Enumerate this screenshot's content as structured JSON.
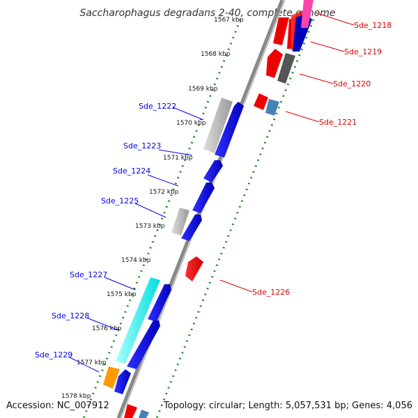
{
  "title": "Saccharophagus degradans 2-40, complete genome",
  "footer": {
    "accession": "Accession: NC_007912",
    "topology": "Topology: circular; Length: 5,057,531 bp; Genes: 4,056"
  },
  "ticks": [
    "1567 kbp",
    "1568 kbp",
    "1569 kbp",
    "1570 kbp",
    "1571 kbp",
    "1572 kbp",
    "1573 kbp",
    "1574 kbp",
    "1575 kbp",
    "1576 kbp",
    "1577 kbp",
    "1578 kbp"
  ],
  "genes_forward": [
    {
      "name": "Sde_1222",
      "color": "#0000ee"
    },
    {
      "name": "Sde_1223",
      "color": "#0000ee"
    },
    {
      "name": "Sde_1224",
      "color": "#0000ee"
    },
    {
      "name": "Sde_1225",
      "color": "#0000ee"
    },
    {
      "name": "Sde_1227",
      "color": "#0000ee"
    },
    {
      "name": "Sde_1228",
      "color": "#0000ee"
    },
    {
      "name": "Sde_1229",
      "color": "#0000ee"
    }
  ],
  "genes_reverse": [
    {
      "name": "Sde_1218",
      "color": "#dd0000"
    },
    {
      "name": "Sde_1219",
      "color": "#dd0000"
    },
    {
      "name": "Sde_1220",
      "color": "#dd0000"
    },
    {
      "name": "Sde_1221",
      "color": "#dd0000"
    },
    {
      "name": "Sde_1226",
      "color": "#dd0000"
    }
  ],
  "colors": {
    "forward": "#0000ee",
    "reverse": "#ee0000",
    "backbone": "#888888",
    "tick_line": "#228822",
    "grey_feature": "#bbbbbb",
    "cyan_feature": "#00ffff",
    "orange_feature": "#ff9900",
    "steelblue_feature": "#4682b4",
    "magenta_feature": "#ff44aa"
  }
}
